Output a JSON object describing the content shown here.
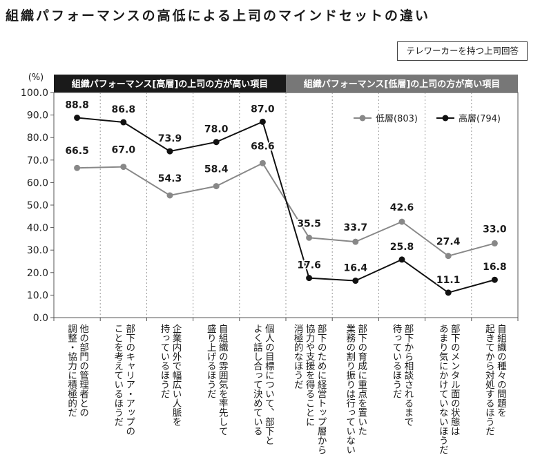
{
  "title": "組織パフォーマンスの高低による上司のマインドセットの違い",
  "source_note": "テレワーカーを持つ上司回答",
  "chart_data": {
    "type": "line",
    "ylabel": "(%)",
    "ylim": [
      0,
      100
    ],
    "yticks": [
      "0.0",
      "10.0",
      "20.0",
      "30.0",
      "40.0",
      "50.0",
      "60.0",
      "70.0",
      "80.0",
      "90.0",
      "100.0"
    ],
    "bands": [
      {
        "label": "組織パフォーマンス[高層]の上司の方が高い項目",
        "color": "#1a1a1a",
        "from": 0,
        "to": 5
      },
      {
        "label": "組織パフォーマンス[低層]の上司の方が高い項目",
        "color": "#777777",
        "from": 5,
        "to": 10
      }
    ],
    "categories": [
      [
        "他の部門の管理者との",
        "調整・協力に積極的だ"
      ],
      [
        "部下のキャリア・アップの",
        "ことを考えているほうだ"
      ],
      [
        "企業内外で幅広い人脈を",
        "持っているほうだ"
      ],
      [
        "自組織の雰囲気を率先して",
        "盛り上げるほうだ"
      ],
      [
        "個人の目標について、部下と",
        "よく話し合って決めている"
      ],
      [
        "部下のために経営トップ層から",
        "協力や支援を得ることに",
        "消極的なほうだ"
      ],
      [
        "部下の育成に重点を置いた",
        "業務の割り振りは行っていない"
      ],
      [
        "部下から相談されるまで",
        "待っているほうだ"
      ],
      [
        "部下のメンタル面の状態は",
        "あまり気にかけていないほうだ"
      ],
      [
        "自組織の種々の問題を",
        "起きてから対処するほうだ"
      ]
    ],
    "series": [
      {
        "name": "低層(803)",
        "color": "#888888",
        "values": [
          66.5,
          67.0,
          54.3,
          58.4,
          68.6,
          35.5,
          33.7,
          42.6,
          27.4,
          33.0
        ],
        "labels": [
          "66.5",
          "67.0",
          "54.3",
          "58.4",
          "68.6",
          "35.5",
          "33.7",
          "42.6",
          "27.4",
          "33.0"
        ]
      },
      {
        "name": "高層(794)",
        "color": "#111111",
        "values": [
          88.8,
          86.8,
          73.9,
          78.0,
          87.0,
          17.6,
          16.4,
          25.8,
          11.1,
          16.8
        ],
        "labels": [
          "88.8",
          "86.8",
          "73.9",
          "78.0",
          "87.0",
          "17.6",
          "16.4",
          "25.8",
          "11.1",
          "16.8"
        ]
      }
    ]
  }
}
